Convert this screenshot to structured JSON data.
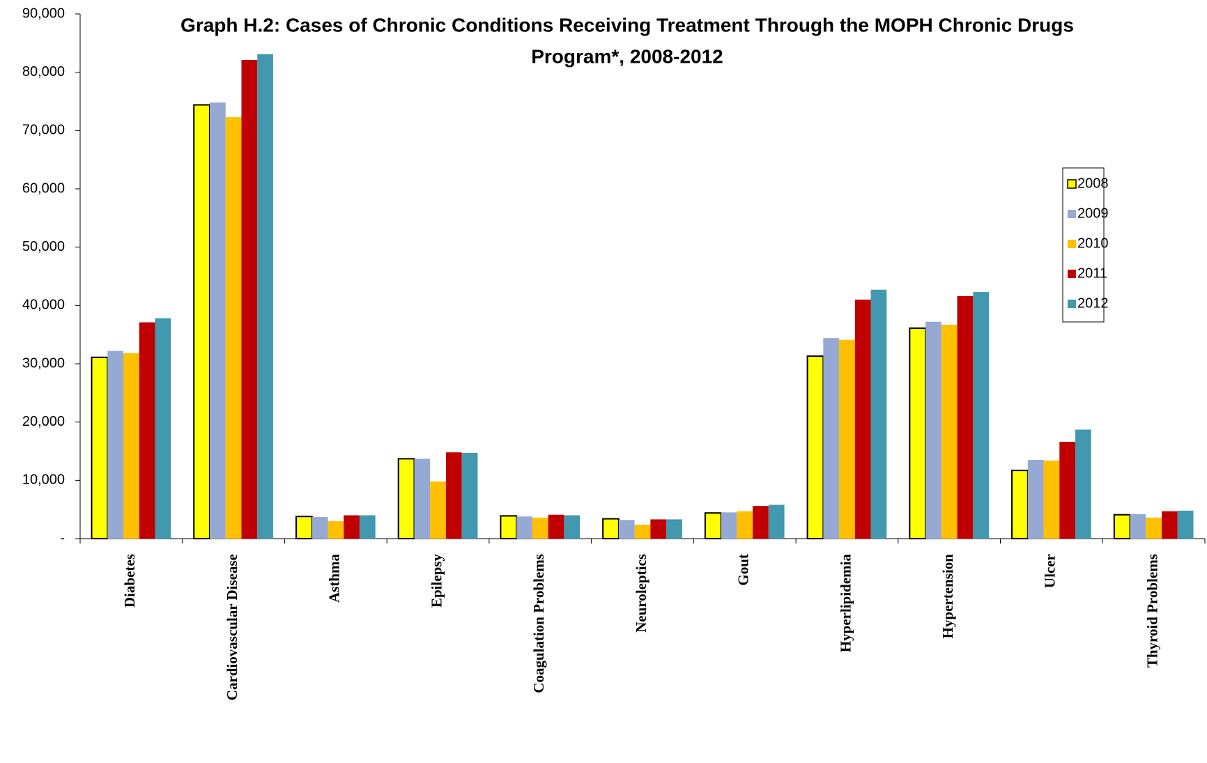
{
  "chart_data": {
    "type": "bar",
    "title": "Graph H.2: Cases of Chronic Conditions Receiving Treatment Through the MOPH Chronic Drugs Program*, 2008-2012",
    "categories": [
      "Diabetes",
      "Cardiovascular Disease",
      "Asthma",
      "Epilepsy",
      "Coagulation Problems",
      "Neuroleptics",
      "Gout",
      "Hyperlipidemia",
      "Hypertension",
      "Ulcer",
      "Thyroid Problems"
    ],
    "series": [
      {
        "name": "2008",
        "color": "#ffff00",
        "values": [
          31100,
          74400,
          3800,
          13700,
          3900,
          3400,
          4400,
          31300,
          36100,
          11700,
          4100
        ]
      },
      {
        "name": "2009",
        "color": "#95a9d3",
        "values": [
          32200,
          74800,
          3700,
          13700,
          3800,
          3200,
          4500,
          34400,
          37200,
          13500,
          4200
        ]
      },
      {
        "name": "2010",
        "color": "#ffc000",
        "values": [
          31800,
          72300,
          3000,
          9800,
          3600,
          2400,
          4700,
          34100,
          36700,
          13400,
          3600
        ]
      },
      {
        "name": "2011",
        "color": "#c00000",
        "values": [
          37100,
          82100,
          4000,
          14800,
          4100,
          3300,
          5600,
          41000,
          41600,
          16600,
          4700
        ]
      },
      {
        "name": "2012",
        "color": "#4198af",
        "values": [
          37800,
          83100,
          4000,
          14700,
          4000,
          3300,
          5800,
          42700,
          42300,
          18700,
          4800
        ]
      }
    ],
    "ylim": [
      0,
      90000
    ],
    "yticks": [
      {
        "value": 0,
        "label": "-"
      },
      {
        "value": 10000,
        "label": "10,000"
      },
      {
        "value": 20000,
        "label": "20,000"
      },
      {
        "value": 30000,
        "label": "30,000"
      },
      {
        "value": 40000,
        "label": "40,000"
      },
      {
        "value": 50000,
        "label": "50,000"
      },
      {
        "value": 60000,
        "label": "60,000"
      },
      {
        "value": 70000,
        "label": "70,000"
      },
      {
        "value": 80000,
        "label": "80,000"
      },
      {
        "value": 90000,
        "label": "90,000"
      }
    ],
    "grid": false,
    "legend": "right"
  }
}
